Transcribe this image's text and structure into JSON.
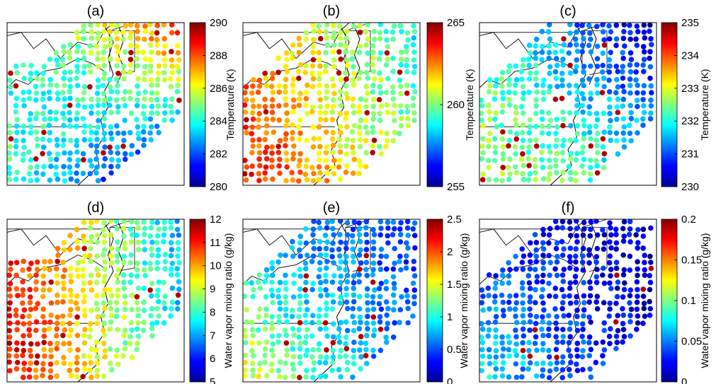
{
  "chart_data": [
    {
      "panel": "(a)",
      "type": "scatter",
      "colormap": "jet",
      "colorbar_label": "Temperature (K)",
      "colorbar_side": "right",
      "colorbar_range": [
        280,
        290
      ],
      "colorbar_ticks": [
        "290",
        "288",
        "286",
        "284",
        "282",
        "280"
      ],
      "value_pattern": "north-east ocean warmest (~289 K), inland central 285-287 K, south-east coast coolest (~281 K)"
    },
    {
      "panel": "(b)",
      "type": "scatter",
      "colormap": "jet",
      "colorbar_label": "",
      "colorbar_side": "right",
      "colorbar_range": [
        255,
        265
      ],
      "colorbar_ticks": [
        "265",
        "260",
        "255"
      ],
      "value_pattern": "south-west warmest (~262 K), north-east coolest (~258 K)"
    },
    {
      "panel": "(c)",
      "type": "scatter",
      "colormap": "jet",
      "colorbar_label": "Temperature (K)",
      "colorbar_side": "left",
      "colorbar_label_2": "Temperature (K)",
      "colorbar_range": [
        230,
        235
      ],
      "colorbar_ticks": [
        "235",
        "234",
        "233",
        "232",
        "231",
        "230"
      ],
      "value_pattern": "north-west hot spots (~235 K), north dark blue (~230 K), south-west ~232 K, east ~231 K"
    },
    {
      "panel": "(d)",
      "type": "scatter",
      "colormap": "jet",
      "colorbar_label": "Water vapor mixing ratio (g/kg)",
      "colorbar_side": "right",
      "colorbar_range": [
        5,
        12
      ],
      "colorbar_ticks": [
        "12",
        "11",
        "10",
        "9",
        "8",
        "7",
        "6",
        "5"
      ],
      "value_pattern": "south-west humid (~11 g/kg), east ~8 g/kg"
    },
    {
      "panel": "(e)",
      "type": "scatter",
      "colormap": "jet",
      "colorbar_label": "Water vapor mixing ratio (g/kg)",
      "colorbar_side": "left",
      "colorbar_range": [
        0,
        2.5
      ],
      "colorbar_ticks": [
        "2.5",
        "2",
        "1.5",
        "1",
        "0.5",
        "0"
      ],
      "value_pattern": "mostly low (~0.2 g/kg) in north-east, ~1 g/kg south-west, higher near south coast"
    },
    {
      "panel": "(f)",
      "type": "scatter",
      "colormap": "jet",
      "colorbar_label": "Water vapor mixing ratio (g/kg)",
      "colorbar_side": "left",
      "colorbar_label_2": "Water vapor mixing ratio (g/kg)",
      "colorbar_range": [
        0,
        0.2
      ],
      "colorbar_ticks": [
        "0.2",
        "0.15",
        "0.1",
        "0.05",
        "0"
      ],
      "value_pattern": "mostly low (~0.01 g/kg) centre, ~0.06 g/kg south-west, outliers ~0.2 g/kg"
    }
  ]
}
